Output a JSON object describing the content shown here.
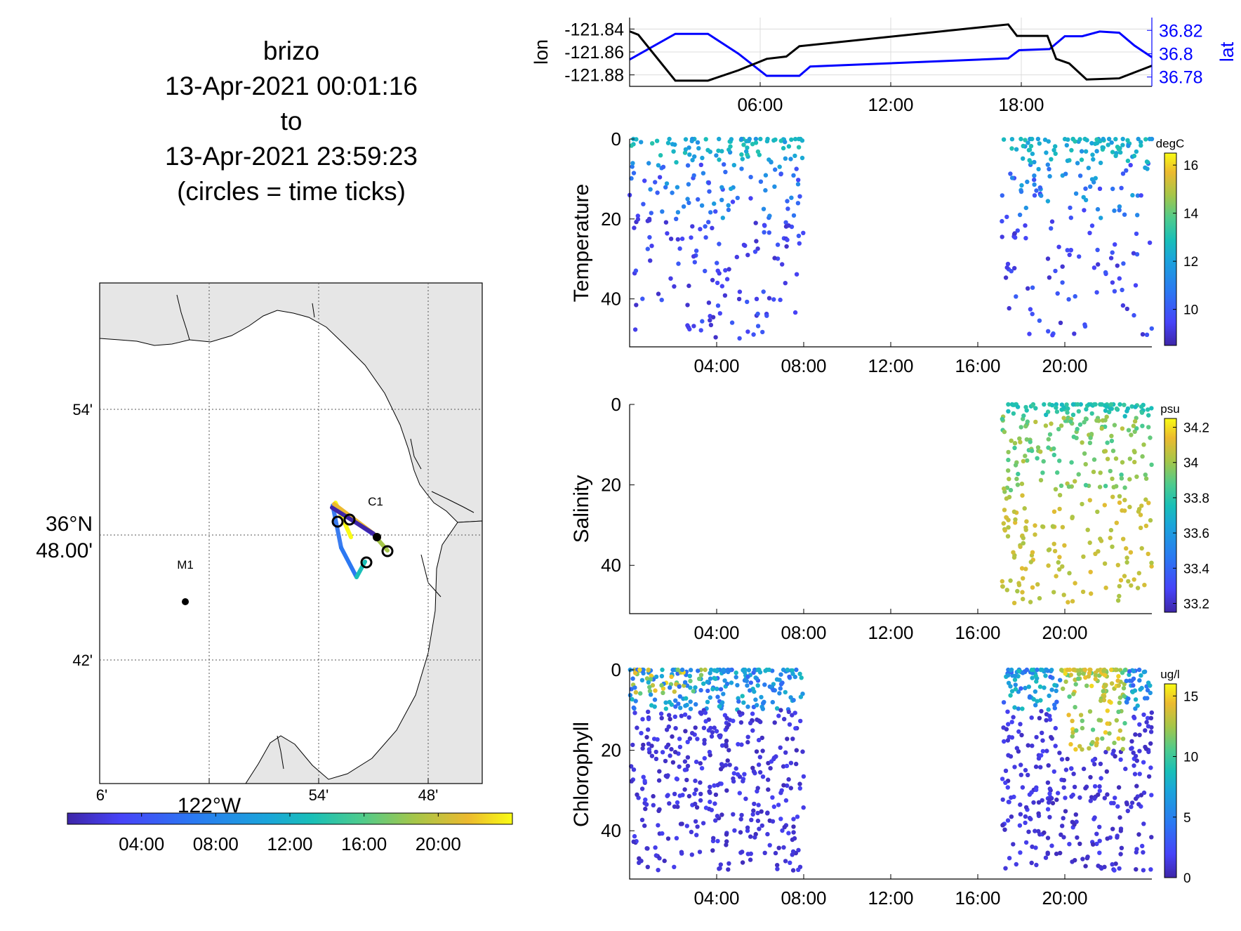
{
  "title_lines": [
    "brizo",
    "13-Apr-2021 00:01:16",
    "to",
    "13-Apr-2021 23:59:23",
    "(circles = time ticks)"
  ],
  "colors": {
    "lon_line": "#000000",
    "lat_line": "#0000ff",
    "land": "#e6e6e6",
    "parula": [
      "#3e26a8",
      "#4743f8",
      "#2b78f2",
      "#1aa5da",
      "#19bfb7",
      "#4ecb8d",
      "#a5c649",
      "#ecba2f",
      "#f9fb14"
    ]
  },
  "map": {
    "lat_labels": [
      "54'",
      "36°N",
      "48.00'",
      "42'"
    ],
    "lon_labels": [
      "6'",
      "122°W",
      "54'",
      "48'"
    ],
    "stations": [
      {
        "name": "M1",
        "lon": -122.03,
        "lat": 36.75
      },
      {
        "name": "C1",
        "lon": -121.85,
        "lat": 36.81
      }
    ],
    "colorbar": {
      "ticks": [
        "04:00",
        "08:00",
        "12:00",
        "16:00",
        "20:00"
      ]
    }
  },
  "chart_data": [
    {
      "type": "line",
      "title": "",
      "xlabel": "",
      "x_ticks": [
        "06:00",
        "12:00",
        "18:00"
      ],
      "xlim": [
        0,
        24
      ],
      "series": [
        {
          "name": "lon",
          "ylabel": "lon",
          "ylim": [
            -121.89,
            -121.83
          ],
          "y_ticks": [
            "-121.84",
            "-121.86",
            "-121.88"
          ],
          "x": [
            0.0,
            0.4,
            2.1,
            3.6,
            5.0,
            6.3,
            7.2,
            7.8,
            17.4,
            17.8,
            19.2,
            19.6,
            20.2,
            21.0,
            22.5,
            24.0
          ],
          "y": [
            -121.842,
            -121.845,
            -121.885,
            -121.885,
            -121.876,
            -121.866,
            -121.864,
            -121.855,
            -121.836,
            -121.846,
            -121.846,
            -121.866,
            -121.87,
            -121.884,
            -121.883,
            -121.872
          ]
        },
        {
          "name": "lat",
          "ylabel": "lat",
          "ylim": [
            36.772,
            36.831
          ],
          "y_ticks": [
            "36.82",
            "36.8",
            "36.78"
          ],
          "x": [
            0.0,
            2.1,
            3.6,
            5.0,
            6.3,
            7.8,
            8.3,
            17.4,
            17.9,
            19.3,
            20.0,
            20.8,
            21.6,
            22.5,
            23.2,
            24.0
          ],
          "y": [
            36.795,
            36.817,
            36.817,
            36.8,
            36.781,
            36.781,
            36.789,
            36.796,
            36.803,
            36.804,
            36.815,
            36.815,
            36.819,
            36.818,
            36.807,
            36.797
          ]
        }
      ]
    },
    {
      "type": "scatter",
      "ylabel": "Temperature",
      "x_ticks": [
        "04:00",
        "08:00",
        "12:00",
        "16:00",
        "20:00"
      ],
      "xlim": [
        0,
        24
      ],
      "ylim": [
        52,
        0
      ],
      "y_ticks": [
        "0",
        "20",
        "40"
      ],
      "colorbar": {
        "unit": "degC",
        "min": 8.5,
        "max": 16.5,
        "ticks": [
          "16",
          "14",
          "12",
          "10"
        ]
      },
      "segments": [
        [
          0.0,
          8.0
        ],
        [
          17.1,
          24.0
        ]
      ],
      "depth_range": [
        0,
        50
      ],
      "point_count": 500
    },
    {
      "type": "scatter",
      "ylabel": "Salinity",
      "x_ticks": [
        "04:00",
        "08:00",
        "12:00",
        "16:00",
        "20:00"
      ],
      "xlim": [
        0,
        24
      ],
      "ylim": [
        52,
        0
      ],
      "y_ticks": [
        "0",
        "20",
        "40"
      ],
      "colorbar": {
        "unit": "psu",
        "min": 33.15,
        "max": 34.25,
        "ticks": [
          "34.2",
          "34",
          "33.8",
          "33.6",
          "33.4",
          "33.2"
        ]
      },
      "segments": [
        [
          17.1,
          24.0
        ]
      ],
      "depth_range": [
        0,
        50
      ],
      "point_count": 360
    },
    {
      "type": "scatter",
      "ylabel": "Chlorophyll",
      "x_ticks": [
        "04:00",
        "08:00",
        "12:00",
        "16:00",
        "20:00"
      ],
      "xlim": [
        0,
        24
      ],
      "ylim": [
        52,
        0
      ],
      "y_ticks": [
        "0",
        "20",
        "40"
      ],
      "colorbar": {
        "unit": "ug/l",
        "min": 0,
        "max": 16,
        "ticks": [
          "15",
          "10",
          "5",
          "0"
        ]
      },
      "segments": [
        [
          0.0,
          8.0
        ],
        [
          17.1,
          24.0
        ]
      ],
      "depth_range": [
        0,
        50
      ],
      "point_count": 1100
    }
  ]
}
